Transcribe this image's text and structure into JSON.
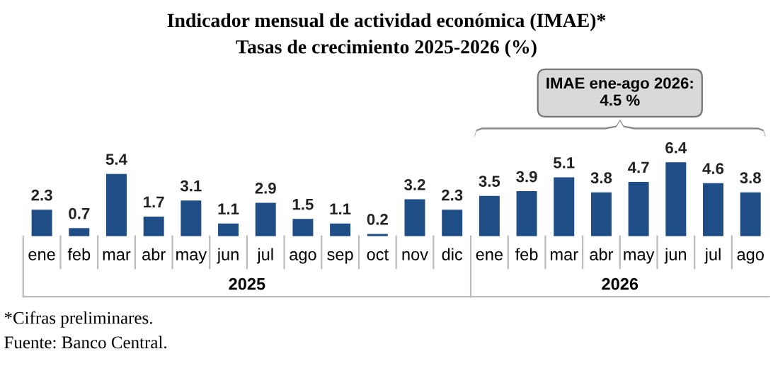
{
  "chart_data": {
    "type": "bar",
    "title": "Indicador mensual de actividad económica (IMAE)*",
    "subtitle": "Tasas de crecimiento 2025-2026 (%)",
    "categories": [
      "ene",
      "feb",
      "mar",
      "abr",
      "may",
      "jun",
      "jul",
      "ago",
      "sep",
      "oct",
      "nov",
      "dic",
      "ene",
      "feb",
      "mar",
      "abr",
      "may",
      "jun",
      "jul",
      "ago"
    ],
    "values": [
      2.3,
      0.7,
      5.4,
      1.7,
      3.1,
      1.1,
      2.9,
      1.5,
      1.1,
      0.2,
      3.2,
      2.3,
      3.5,
      3.9,
      5.1,
      3.8,
      4.7,
      6.4,
      4.6,
      3.8
    ],
    "color": "#1f4e86",
    "data_labels": true,
    "ylim": [
      0,
      14.4
    ],
    "grid": false,
    "legend": false,
    "annotations": [
      "IMAE ene-ago 2026:\n4.5 %",
      "2025",
      "2026",
      "*Cifras preliminares.",
      "Fuente: Banco Central."
    ]
  }
}
